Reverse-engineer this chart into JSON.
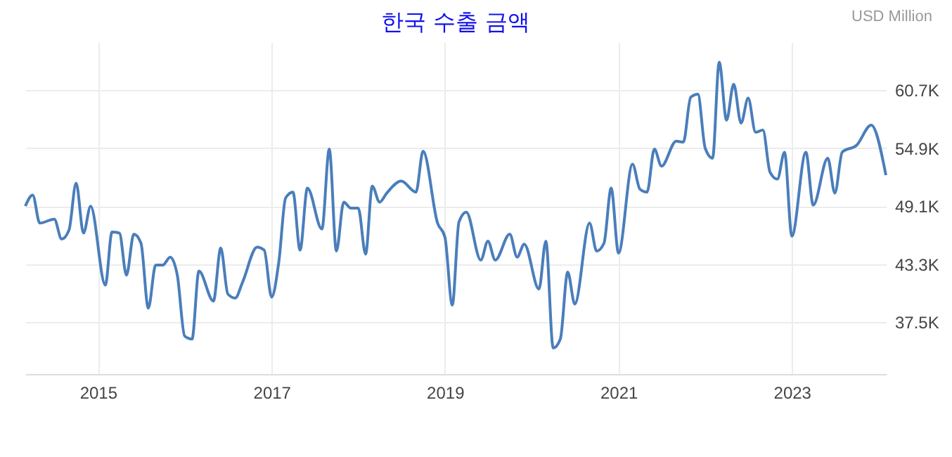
{
  "chart_data": {
    "type": "line",
    "title": "한국 수출 금액",
    "annotations": [
      "USD Million"
    ],
    "x": [
      "2014-03",
      "2014-04",
      "2014-05",
      "2014-07",
      "2014-08",
      "2014-09",
      "2014-10",
      "2014-11",
      "2014-12",
      "2015-02",
      "2015-03",
      "2015-04",
      "2015-05",
      "2015-06",
      "2015-07",
      "2015-08",
      "2015-09",
      "2015-10",
      "2015-11",
      "2015-12",
      "2016-01",
      "2016-02",
      "2016-03",
      "2016-05",
      "2016-06",
      "2016-07",
      "2016-08",
      "2016-09",
      "2016-11",
      "2016-12",
      "2017-01",
      "2017-02",
      "2017-03",
      "2017-04",
      "2017-05",
      "2017-06",
      "2017-08",
      "2017-09",
      "2017-10",
      "2017-11",
      "2017-12",
      "2018-01",
      "2018-02",
      "2018-03",
      "2018-04",
      "2018-05",
      "2018-07",
      "2018-09",
      "2018-10",
      "2018-12",
      "2019-01",
      "2019-02",
      "2019-03",
      "2019-04",
      "2019-06",
      "2019-07",
      "2019-08",
      "2019-10",
      "2019-11",
      "2019-12",
      "2020-02",
      "2020-03",
      "2020-04",
      "2020-05",
      "2020-06",
      "2020-07",
      "2020-09",
      "2020-10",
      "2020-11",
      "2020-12",
      "2021-01",
      "2021-03",
      "2021-04",
      "2021-05",
      "2021-06",
      "2021-07",
      "2021-09",
      "2021-10",
      "2021-11",
      "2021-12",
      "2022-01",
      "2022-02",
      "2022-03",
      "2022-04",
      "2022-05",
      "2022-06",
      "2022-07",
      "2022-08",
      "2022-09",
      "2022-10",
      "2022-11",
      "2022-12",
      "2023-01",
      "2023-03",
      "2023-04",
      "2023-06",
      "2023-07",
      "2023-08",
      "2023-10",
      "2023-12",
      "2024-02"
    ],
    "series": [
      {
        "color": "#4a7ebb",
        "values": [
          49100,
          50200,
          47400,
          47800,
          45800,
          46700,
          51400,
          46400,
          49100,
          41200,
          46500,
          46400,
          42200,
          46300,
          45400,
          38900,
          43200,
          43200,
          44000,
          42200,
          36100,
          35800,
          42600,
          39600,
          44900,
          40300,
          39900,
          41500,
          45000,
          44700,
          40000,
          43600,
          49900,
          50500,
          44700,
          50900,
          46800,
          54800,
          44600,
          49500,
          48900,
          48900,
          44300,
          51100,
          49500,
          50400,
          51600,
          50500,
          54600,
          47400,
          46000,
          39200,
          47500,
          48500,
          43700,
          45600,
          43700,
          46300,
          44000,
          45300,
          40800,
          45600,
          34900,
          35800,
          42500,
          39300,
          47400,
          44600,
          45400,
          50900,
          44400,
          53300,
          50800,
          50500,
          54800,
          53100,
          55600,
          55500,
          60000,
          60300,
          54900,
          53900,
          63500,
          57700,
          61300,
          57400,
          59900,
          56500,
          56700,
          52500,
          51800,
          54500,
          46100,
          54500,
          49200,
          53900,
          50400,
          54500,
          55200,
          57200,
          52200
        ]
      }
    ],
    "xlim": [
      "2014-03",
      "2024-02"
    ],
    "xticks": [
      "2015",
      "2017",
      "2019",
      "2021",
      "2023"
    ],
    "ylim": [
      32300,
      65500
    ],
    "yticks": [
      {
        "value": 37500,
        "label": "37.5K"
      },
      {
        "value": 43300,
        "label": "43.3K"
      },
      {
        "value": 49100,
        "label": "49.1K"
      },
      {
        "value": 54900,
        "label": "54.9K"
      },
      {
        "value": 60700,
        "label": "60.7K"
      }
    ],
    "grid": true,
    "marker": "none",
    "line_style": "solid"
  }
}
